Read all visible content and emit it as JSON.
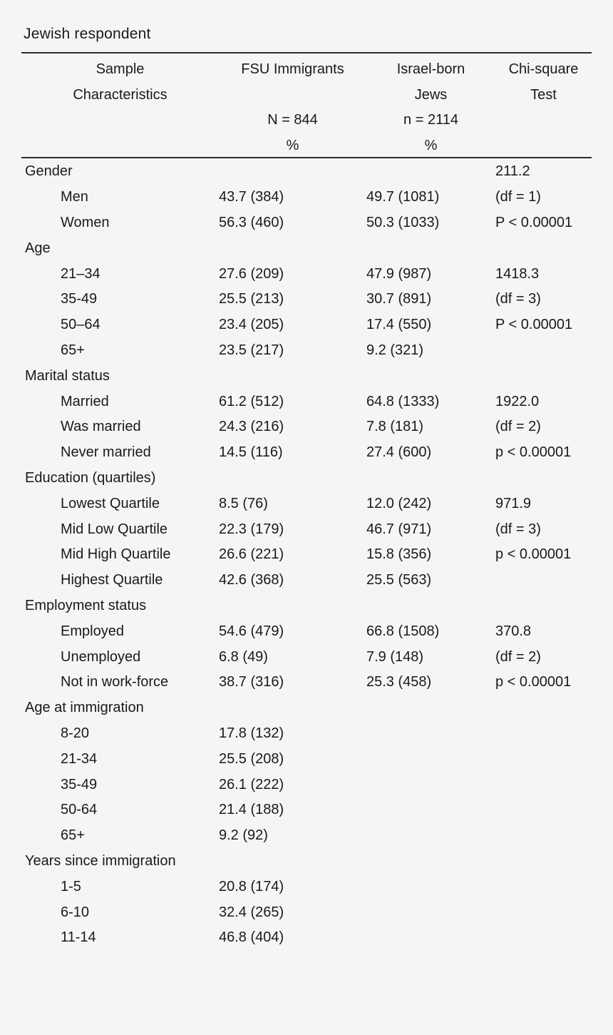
{
  "title": "Jewish respondent",
  "table": {
    "header": {
      "sample_line1": "Sample",
      "sample_line2": "Characteristics",
      "fsu_line1": "FSU Immigrants",
      "fsu_n": "N = 844",
      "fsu_pct": "%",
      "israel_line1": "Israel-born",
      "israel_line2": "Jews",
      "israel_n": "n = 2114",
      "israel_pct": "%",
      "chi_line1": "Chi-square",
      "chi_line2": "Test"
    },
    "rows": [
      {
        "label": "Gender",
        "section": true,
        "fsu": "",
        "israel": "",
        "chi": "211.2"
      },
      {
        "label": "Men",
        "section": false,
        "fsu": "43.7 (384)",
        "israel": "49.7 (1081)",
        "chi": "(df = 1)"
      },
      {
        "label": "Women",
        "section": false,
        "fsu": "56.3 (460)",
        "israel": "50.3 (1033)",
        "chi": "P < 0.00001"
      },
      {
        "label": "Age",
        "section": true,
        "fsu": "",
        "israel": "",
        "chi": ""
      },
      {
        "label": "21–34",
        "section": false,
        "fsu": "27.6 (209)",
        "israel": "47.9 (987)",
        "chi": "1418.3"
      },
      {
        "label": "35-49",
        "section": false,
        "fsu": "25.5 (213)",
        "israel": "30.7 (891)",
        "chi": "(df = 3)"
      },
      {
        "label": "50–64",
        "section": false,
        "fsu": "23.4 (205)",
        "israel": "17.4 (550)",
        "chi": "P < 0.00001"
      },
      {
        "label": "65+",
        "section": false,
        "fsu": "23.5 (217)",
        "israel": "9.2 (321)",
        "chi": ""
      },
      {
        "label": "Marital status",
        "section": true,
        "fsu": "",
        "israel": "",
        "chi": ""
      },
      {
        "label": "Married",
        "section": false,
        "fsu": "61.2 (512)",
        "israel": "64.8 (1333)",
        "chi": "1922.0"
      },
      {
        "label": "Was married",
        "section": false,
        "fsu": "24.3 (216)",
        "israel": "7.8 (181)",
        "chi": "(df = 2)"
      },
      {
        "label": "Never married",
        "section": false,
        "fsu": "14.5 (116)",
        "israel": "27.4 (600)",
        "chi": "p < 0.00001"
      },
      {
        "label": "Education (quartiles)",
        "section": true,
        "fsu": "",
        "israel": "",
        "chi": ""
      },
      {
        "label": "Lowest Quartile",
        "section": false,
        "fsu": "8.5 (76)",
        "israel": "12.0 (242)",
        "chi": "971.9"
      },
      {
        "label": "Mid Low Quartile",
        "section": false,
        "fsu": "22.3 (179)",
        "israel": "46.7 (971)",
        "chi": "(df = 3)"
      },
      {
        "label": "Mid High Quartile",
        "section": false,
        "fsu": "26.6 (221)",
        "israel": "15.8 (356)",
        "chi": "p < 0.00001"
      },
      {
        "label": "Highest Quartile",
        "section": false,
        "fsu": "42.6 (368)",
        "israel": "25.5 (563)",
        "chi": ""
      },
      {
        "label": "Employment status",
        "section": true,
        "fsu": "",
        "israel": "",
        "chi": ""
      },
      {
        "label": "Employed",
        "section": false,
        "fsu": "54.6 (479)",
        "israel": "66.8 (1508)",
        "chi": "370.8"
      },
      {
        "label": "Unemployed",
        "section": false,
        "fsu": "6.8 (49)",
        "israel": "7.9 (148)",
        "chi": "(df = 2)"
      },
      {
        "label": "Not in work-force",
        "section": false,
        "fsu": "38.7 (316)",
        "israel": "25.3 (458)",
        "chi": "p < 0.00001"
      },
      {
        "label": "Age at immigration",
        "section": true,
        "fsu": "",
        "israel": "",
        "chi": ""
      },
      {
        "label": "8-20",
        "section": false,
        "fsu": "17.8 (132)",
        "israel": "",
        "chi": ""
      },
      {
        "label": "21-34",
        "section": false,
        "fsu": "25.5 (208)",
        "israel": "",
        "chi": ""
      },
      {
        "label": "35-49",
        "section": false,
        "fsu": "26.1 (222)",
        "israel": "",
        "chi": ""
      },
      {
        "label": "50-64",
        "section": false,
        "fsu": "21.4 (188)",
        "israel": "",
        "chi": ""
      },
      {
        "label": "65+",
        "section": false,
        "fsu": "9.2 (92)",
        "israel": "",
        "chi": ""
      },
      {
        "label": "Years since immigration",
        "section": true,
        "fsu": "",
        "israel": "",
        "chi": ""
      },
      {
        "label": "1-5",
        "section": false,
        "fsu": "20.8 (174)",
        "israel": "",
        "chi": ""
      },
      {
        "label": "6-10",
        "section": false,
        "fsu": "32.4 (265)",
        "israel": "",
        "chi": ""
      },
      {
        "label": "11-14",
        "section": false,
        "fsu": "46.8 (404)",
        "israel": "",
        "chi": ""
      }
    ]
  }
}
